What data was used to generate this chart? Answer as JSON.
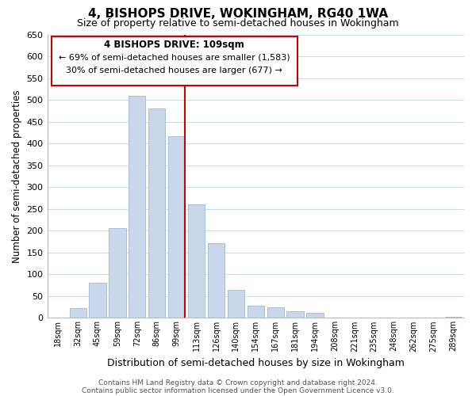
{
  "title": "4, BISHOPS DRIVE, WOKINGHAM, RG40 1WA",
  "subtitle": "Size of property relative to semi-detached houses in Wokingham",
  "xlabel": "Distribution of semi-detached houses by size in Wokingham",
  "ylabel": "Number of semi-detached properties",
  "bar_labels": [
    "18sqm",
    "32sqm",
    "45sqm",
    "59sqm",
    "72sqm",
    "86sqm",
    "99sqm",
    "113sqm",
    "126sqm",
    "140sqm",
    "154sqm",
    "167sqm",
    "181sqm",
    "194sqm",
    "208sqm",
    "221sqm",
    "235sqm",
    "248sqm",
    "262sqm",
    "275sqm",
    "289sqm"
  ],
  "bar_values": [
    0,
    22,
    80,
    207,
    510,
    480,
    418,
    260,
    172,
    65,
    28,
    25,
    15,
    12,
    0,
    0,
    0,
    0,
    0,
    0,
    3
  ],
  "bar_color": "#c8d8ea",
  "bar_edge_color": "#a8c0d4",
  "ylim": [
    0,
    650
  ],
  "yticks": [
    0,
    50,
    100,
    150,
    200,
    250,
    300,
    350,
    400,
    450,
    500,
    550,
    600,
    650
  ],
  "vline_color": "#cc0000",
  "annotation_title": "4 BISHOPS DRIVE: 109sqm",
  "annotation_line1": "← 69% of semi-detached houses are smaller (1,583)",
  "annotation_line2": "30% of semi-detached houses are larger (677) →",
  "annotation_box_color": "#ffffff",
  "annotation_box_edge": "#cc0000",
  "footer1": "Contains HM Land Registry data © Crown copyright and database right 2024.",
  "footer2": "Contains public sector information licensed under the Open Government Licence v3.0.",
  "background_color": "#ffffff",
  "grid_color": "#ccd8e4"
}
